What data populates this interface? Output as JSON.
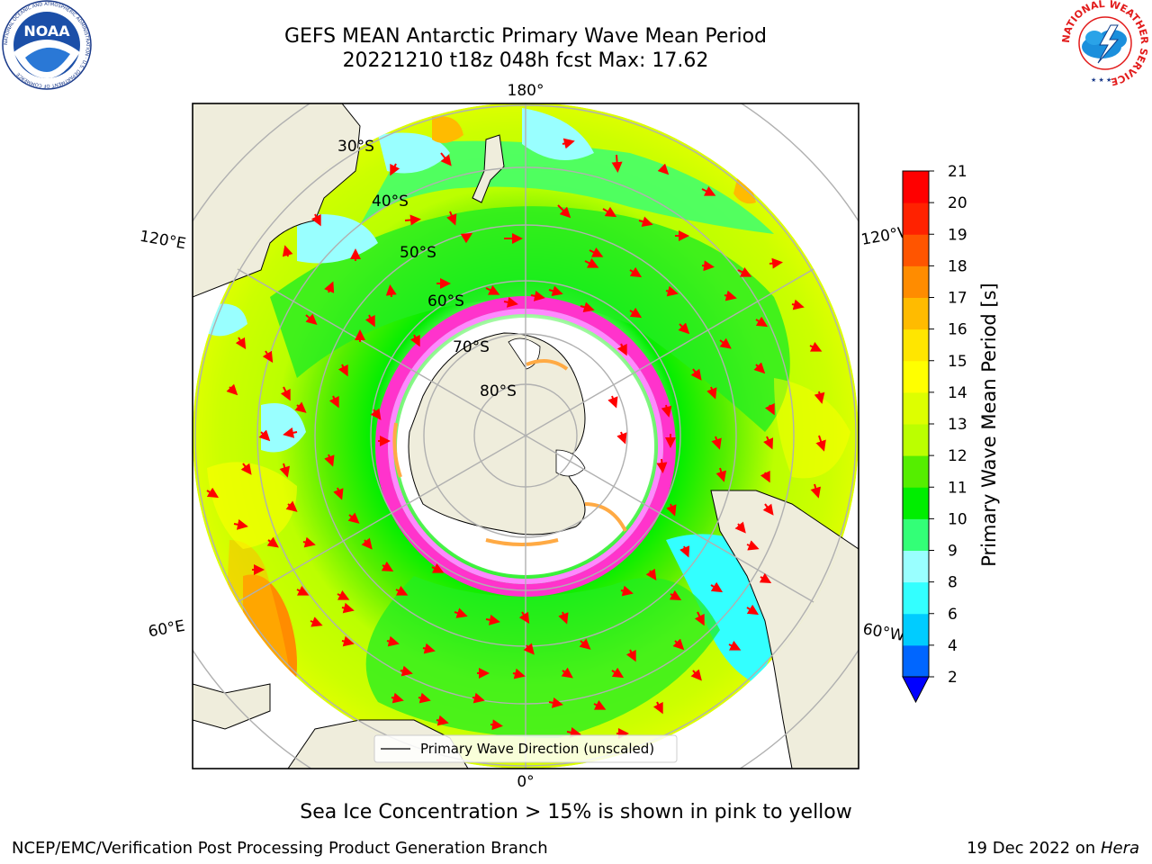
{
  "header": {
    "title_line1": "GEFS MEAN Antarctic Primary Wave Mean Period",
    "title_line2": "20221210 t18z 048h fcst   Max: 17.62"
  },
  "logos": {
    "left": {
      "name": "noaa-logo",
      "text": "NOAA",
      "ring_text": "NATIONAL OCEANIC AND ATMOSPHERIC ADMINISTRATION · U.S. DEPARTMENT OF COMMERCE"
    },
    "right": {
      "name": "nws-logo",
      "ring_text": "NATIONAL WEATHER SERVICE"
    }
  },
  "map": {
    "projection": "south polar stereographic",
    "longitude_labels": {
      "top": "180°",
      "bottom": "0°",
      "left_upper": "120°E",
      "left_lower": "60°E",
      "right_upper": "120°W",
      "right_lower": "60°W"
    },
    "latitude_labels": [
      "30°S",
      "40°S",
      "50°S",
      "60°S",
      "70°S",
      "80°S"
    ],
    "legend_label": "Primary Wave Direction (unscaled)",
    "arrow_color": "#ff0000",
    "land_color": "#efeddc",
    "ice_color": "#ffffff",
    "ice_edge_colors": [
      "#ff33cc",
      "#ff66ff",
      "#ffaa44"
    ]
  },
  "colorbar": {
    "label": "Primary Wave Mean Period [s]",
    "ticks": [
      "2",
      "4",
      "6",
      "8",
      "9",
      "10",
      "11",
      "12",
      "13",
      "14",
      "15",
      "16",
      "17",
      "18",
      "19",
      "20",
      "21"
    ],
    "colors": [
      "#0066ff",
      "#00ccff",
      "#33ffff",
      "#99ffff",
      "#33ff77",
      "#00ee00",
      "#55ee00",
      "#bbff00",
      "#ddff00",
      "#ffff00",
      "#ffe600",
      "#ffbb00",
      "#ff8c00",
      "#ff5500",
      "#ff2200",
      "#ff0000"
    ],
    "under_color": "#0000ff"
  },
  "footer": {
    "note": "Sea Ice Concentration > 15% is shown in pink to yellow",
    "credit_left": "NCEP/EMC/Verification Post Processing Product Generation Branch",
    "credit_right_date": "19 Dec 2022 on",
    "credit_right_host": "Hera"
  }
}
